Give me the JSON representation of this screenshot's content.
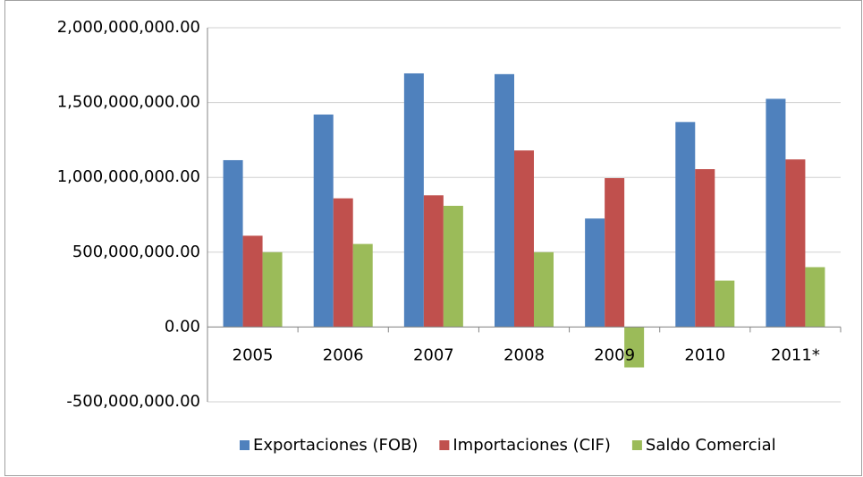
{
  "chart_data": {
    "type": "bar",
    "categories": [
      "2005",
      "2006",
      "2007",
      "2008",
      "2009",
      "2010",
      "2011*"
    ],
    "series": [
      {
        "name": "Exportaciones (FOB)",
        "color": "#4f81bd",
        "values": [
          1115000000,
          1420000000,
          1695000000,
          1690000000,
          725000000,
          1370000000,
          1525000000
        ]
      },
      {
        "name": "Importaciones (CIF)",
        "color": "#c0504d",
        "values": [
          610000000,
          860000000,
          880000000,
          1180000000,
          995000000,
          1055000000,
          1120000000
        ]
      },
      {
        "name": "Saldo Comercial",
        "color": "#9bbb59",
        "values": [
          500000000,
          555000000,
          810000000,
          500000000,
          -270000000,
          310000000,
          400000000
        ]
      }
    ],
    "ylim": [
      -500000000,
      2000000000
    ],
    "yticks": [
      {
        "value": -500000000,
        "label": "-500,000,000.00"
      },
      {
        "value": 0,
        "label": "0.00"
      },
      {
        "value": 500000000,
        "label": "500,000,000.00"
      },
      {
        "value": 1000000000,
        "label": "1,000,000,000.00"
      },
      {
        "value": 1500000000,
        "label": "1,500,000,000.00"
      },
      {
        "value": 2000000000,
        "label": "2,000,000,000.00"
      }
    ],
    "grid": true,
    "legend": "bottom"
  }
}
